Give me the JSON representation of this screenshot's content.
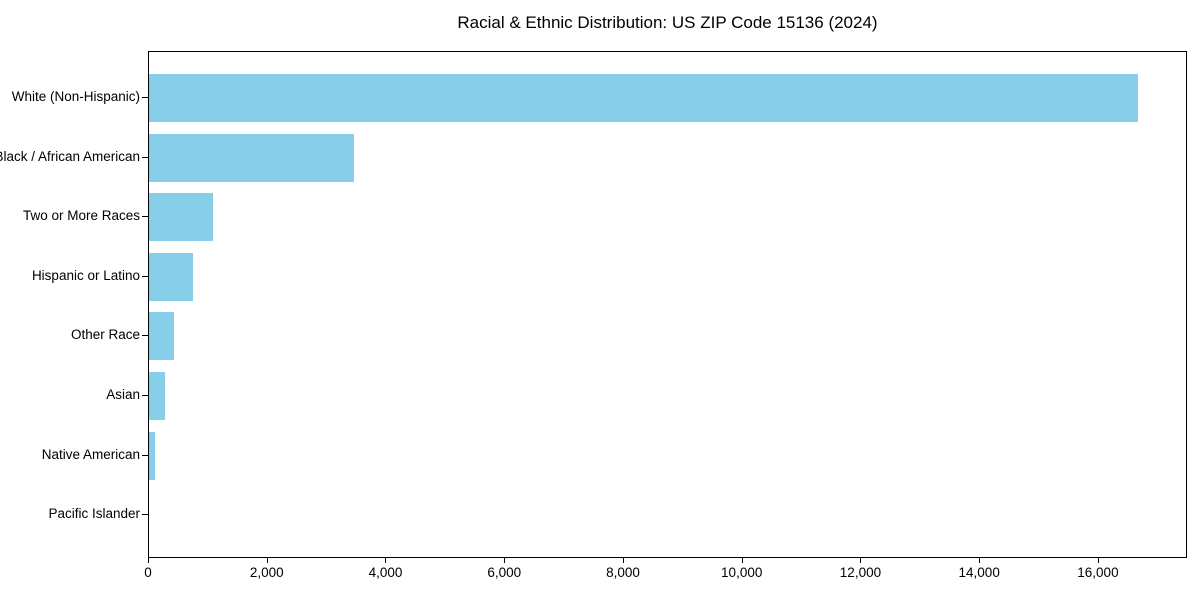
{
  "chart_data": {
    "type": "bar",
    "orientation": "horizontal",
    "title": "Racial & Ethnic Distribution: US ZIP Code 15136 (2024)",
    "categories": [
      "White (Non-Hispanic)",
      "Black / African American",
      "Two or More Races",
      "Hispanic or Latino",
      "Other Race",
      "Asian",
      "Native American",
      "Pacific Islander"
    ],
    "values": [
      16650,
      3450,
      1070,
      745,
      420,
      270,
      95,
      0
    ],
    "xlabel": "",
    "ylabel": "",
    "xlim": [
      0,
      17500
    ],
    "x_ticks": [
      0,
      2000,
      4000,
      6000,
      8000,
      10000,
      12000,
      14000,
      16000
    ],
    "x_tick_labels": [
      "0",
      "2,000",
      "4,000",
      "6,000",
      "8,000",
      "10,000",
      "12,000",
      "14,000",
      "16,000"
    ],
    "bar_color": "#87CEEB",
    "axis_color": "#000000",
    "grid": false,
    "legend_position": "none"
  }
}
